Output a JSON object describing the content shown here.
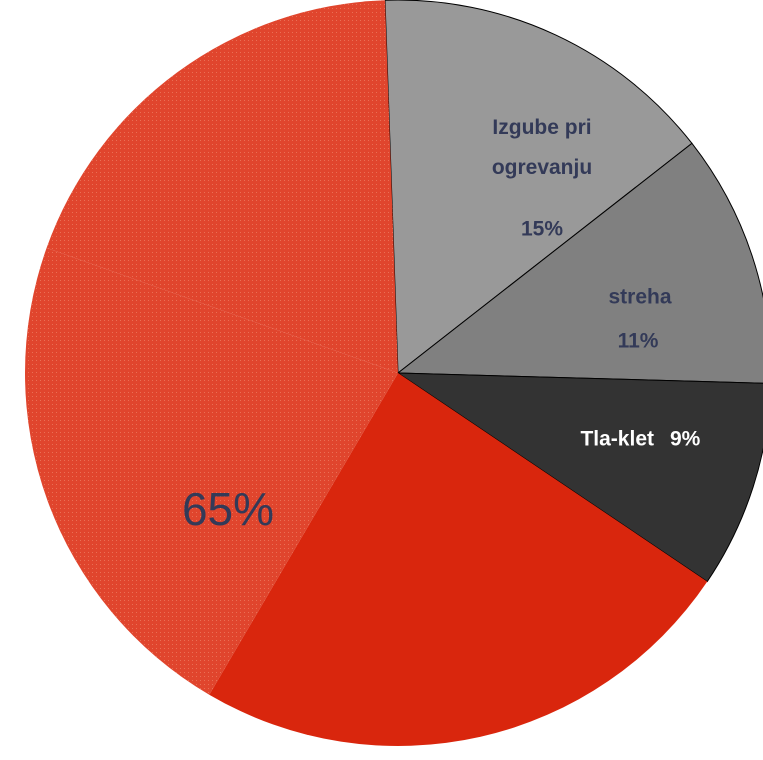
{
  "chart_data": {
    "type": "pie",
    "categories": [
      "Izgube pri ogrevanju",
      "streha",
      "Tla-klet",
      null,
      null,
      null
    ],
    "values": [
      15,
      11,
      9,
      24,
      22,
      19
    ],
    "value_labels": [
      "15%",
      "11%",
      "9%",
      null,
      null,
      null
    ],
    "colors": [
      "#999999",
      "#808080",
      "#333333",
      "#d9260d",
      "#e0452d",
      "#e0452d"
    ],
    "annotations": [
      "65%"
    ]
  }
}
